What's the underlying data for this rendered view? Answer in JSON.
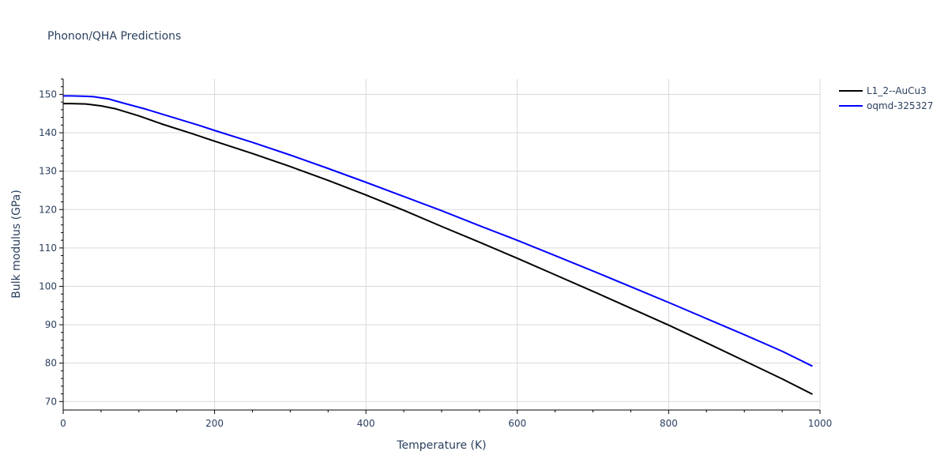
{
  "chart_data": {
    "type": "line",
    "title": "Phonon/QHA Predictions",
    "xlabel": "Temperature (K)",
    "ylabel": "Bulk modulus (GPa)",
    "xlim": [
      0,
      1000
    ],
    "ylim": [
      68,
      154
    ],
    "x_ticks": [
      0,
      200,
      400,
      600,
      800,
      1000
    ],
    "y_ticks": [
      70,
      80,
      90,
      100,
      110,
      120,
      130,
      140,
      150
    ],
    "grid": true,
    "legend_position": "top-right",
    "series": [
      {
        "name": "L1_2--AuCu3",
        "color": "#000000",
        "x": [
          0,
          10,
          30,
          50,
          70,
          100,
          130,
          170,
          200,
          250,
          300,
          350,
          400,
          450,
          500,
          550,
          600,
          650,
          700,
          750,
          800,
          850,
          900,
          950,
          990
        ],
        "y": [
          147.6,
          147.6,
          147.5,
          147.0,
          146.2,
          144.4,
          142.3,
          139.8,
          137.8,
          134.6,
          131.2,
          127.6,
          123.8,
          119.8,
          115.6,
          111.5,
          107.3,
          103.0,
          98.7,
          94.3,
          89.9,
          85.3,
          80.6,
          75.9,
          71.9
        ]
      },
      {
        "name": "oqmd-325327",
        "color": "#0000ff",
        "x": [
          0,
          10,
          30,
          40,
          60,
          80,
          110,
          140,
          180,
          200,
          250,
          300,
          350,
          400,
          450,
          500,
          550,
          600,
          650,
          700,
          750,
          800,
          850,
          900,
          950,
          990
        ],
        "y": [
          149.6,
          149.6,
          149.5,
          149.4,
          148.8,
          147.7,
          146.1,
          144.3,
          141.9,
          140.6,
          137.5,
          134.2,
          130.7,
          127.1,
          123.4,
          119.7,
          115.8,
          112.0,
          108.0,
          104.0,
          99.9,
          95.8,
          91.6,
          87.4,
          83.1,
          79.2
        ]
      }
    ]
  }
}
